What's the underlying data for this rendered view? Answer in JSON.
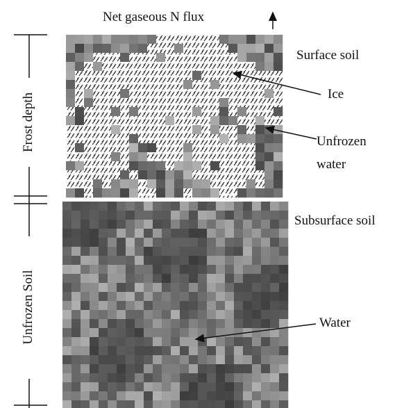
{
  "labels": {
    "flux": "Net gaseous N flux",
    "surface": "Surface soil",
    "ice": "Ice",
    "unfrozen_water": [
      "Unfrozen",
      "water"
    ],
    "subsurface": "Subsurface soil",
    "water": "Water",
    "frost_depth": "Frost depth",
    "unfrozen_soil": "Unfrozen Soil"
  }
}
